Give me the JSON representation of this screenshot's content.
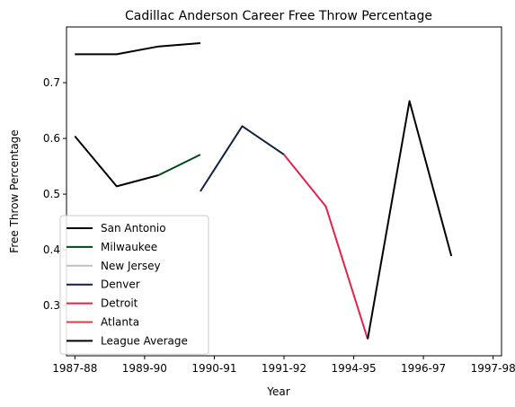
{
  "chart_data": {
    "type": "line",
    "title": "Cadillac Anderson Career Free Throw Percentage",
    "xlabel": "Year",
    "ylabel": "Free Throw Percentage",
    "x_ticks": [
      "1987-88",
      "1989-90",
      "1990-91",
      "1991-92",
      "1994-95",
      "1996-97",
      "1997-98"
    ],
    "y_ticks": [
      0.3,
      0.4,
      0.5,
      0.6,
      0.7
    ],
    "xlim": [
      -0.2,
      10.2
    ],
    "ylim": [
      0.21,
      0.8
    ],
    "grid": false,
    "legend_position": "lower-left",
    "series": [
      {
        "name": "San Antonio",
        "color": "#000000",
        "points": [
          [
            0,
            0.604
          ],
          [
            1,
            0.514
          ],
          [
            2,
            0.534
          ]
        ]
      },
      {
        "name": "Milwaukee",
        "color": "#00471B",
        "points": [
          [
            2,
            0.534
          ],
          [
            3,
            0.571
          ]
        ]
      },
      {
        "name": "New Jersey",
        "color": "#BEC0C2",
        "points": []
      },
      {
        "name": "Denver",
        "color": "#0E2240",
        "points": [
          [
            3,
            0.505
          ],
          [
            4,
            0.622
          ],
          [
            5,
            0.571
          ]
        ]
      },
      {
        "name": "Detroit",
        "color": "#E1234C",
        "points": [
          [
            5,
            0.571
          ],
          [
            6,
            0.478
          ],
          [
            7,
            0.24
          ]
        ]
      },
      {
        "name": "Atlanta",
        "color": "#D93D46",
        "points": []
      },
      {
        "name": "",
        "color": "#000000",
        "points": [
          [
            7,
            0.24
          ],
          [
            8,
            0.667
          ],
          [
            9,
            0.389
          ]
        ]
      },
      {
        "name": "League Average",
        "color": "#000000",
        "points": [
          [
            0,
            0.751
          ],
          [
            1,
            0.751
          ],
          [
            2,
            0.765
          ],
          [
            3,
            0.771
          ]
        ]
      }
    ]
  }
}
